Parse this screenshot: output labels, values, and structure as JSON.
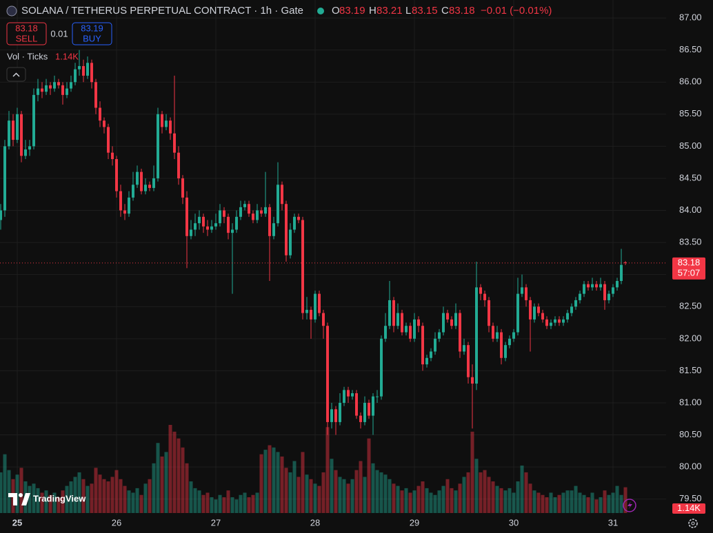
{
  "header": {
    "title": "SOLANA / TETHERUS PERPETUAL CONTRACT · 1h · Gate",
    "ohlc_labels": [
      "O",
      "H",
      "L",
      "C"
    ],
    "change": "−0.01 (−0.01%)"
  },
  "trade": {
    "sell_price": 83.18,
    "sell": "SELL",
    "spread": 0.01,
    "buy_price": 83.19,
    "buy": "BUY"
  },
  "indicator": {
    "name": "Vol · Ticks"
  },
  "branding": "TradingView",
  "chart_data": {
    "type": "candlestick",
    "categories": [
      null,
      null,
      null,
      null,
      "25",
      null,
      null,
      null,
      null,
      null,
      null,
      null,
      null,
      null,
      null,
      null,
      null,
      null,
      null,
      null,
      null,
      null,
      null,
      null,
      null,
      null,
      null,
      null,
      "26",
      null,
      null,
      null,
      null,
      null,
      null,
      null,
      null,
      null,
      null,
      null,
      null,
      null,
      null,
      null,
      null,
      null,
      null,
      null,
      null,
      null,
      null,
      null,
      "27",
      null,
      null,
      null,
      null,
      null,
      null,
      null,
      null,
      null,
      null,
      null,
      null,
      null,
      null,
      null,
      null,
      null,
      null,
      null,
      null,
      null,
      null,
      null,
      "28",
      null,
      null,
      null,
      null,
      null,
      null,
      null,
      null,
      null,
      null,
      null,
      null,
      null,
      null,
      null,
      null,
      null,
      null,
      null,
      null,
      null,
      null,
      null,
      "29",
      null,
      null,
      null,
      null,
      null,
      null,
      null,
      null,
      null,
      null,
      null,
      null,
      null,
      null,
      null,
      null,
      null,
      null,
      null,
      null,
      null,
      null,
      null,
      "30",
      null,
      null,
      null,
      null,
      null,
      null,
      null,
      null,
      null,
      null,
      null,
      null,
      null,
      null,
      null,
      null,
      null,
      null,
      null,
      null,
      null,
      null,
      null,
      "31",
      null,
      null,
      null
    ],
    "open": [
      83.85,
      84.0,
      85.0,
      85.4,
      85.1,
      85.5,
      84.85,
      84.95,
      85.0,
      85.8,
      85.9,
      85.85,
      85.95,
      85.9,
      86.0,
      85.95,
      85.8,
      85.9,
      86.0,
      86.2,
      86.25,
      86.1,
      86.3,
      86.0,
      85.6,
      85.4,
      85.3,
      84.9,
      84.8,
      84.3,
      84.0,
      83.95,
      84.2,
      84.4,
      84.6,
      84.3,
      84.4,
      84.35,
      84.5,
      85.5,
      85.3,
      85.4,
      85.2,
      84.9,
      84.5,
      84.2,
      83.6,
      83.7,
      83.8,
      83.9,
      83.75,
      83.7,
      83.75,
      83.8,
      84.0,
      83.9,
      83.65,
      83.7,
      83.9,
      84.05,
      84.1,
      83.95,
      83.85,
      84.0,
      83.95,
      84.05,
      83.6,
      83.8,
      84.4,
      84.1,
      83.3,
      83.7,
      83.9,
      83.85,
      82.4,
      82.45,
      82.3,
      82.7,
      82.4,
      82.2,
      80.7,
      80.9,
      80.7,
      81.0,
      81.2,
      81.1,
      81.15,
      80.8,
      80.7,
      81.0,
      80.8,
      81.1,
      81.1,
      82.0,
      82.2,
      82.6,
      82.2,
      82.4,
      82.1,
      82.2,
      82.0,
      82.3,
      82.2,
      81.6,
      81.7,
      81.8,
      82.0,
      82.1,
      82.4,
      82.3,
      82.2,
      82.4,
      81.8,
      81.9,
      81.4,
      81.3,
      82.8,
      82.7,
      82.6,
      82.2,
      82.0,
      82.1,
      81.7,
      81.9,
      82.0,
      82.1,
      82.7,
      82.8,
      82.6,
      82.3,
      82.5,
      82.4,
      82.3,
      82.2,
      82.25,
      82.3,
      82.25,
      82.3,
      82.4,
      82.5,
      82.6,
      82.7,
      82.85,
      82.8,
      82.85,
      82.8,
      82.85,
      82.6,
      82.7,
      82.8,
      82.9,
      83.19
    ],
    "high": [
      84.1,
      85.1,
      85.55,
      85.5,
      85.6,
      85.55,
      85.1,
      85.1,
      85.9,
      86.05,
      86.0,
      86.05,
      86.0,
      86.1,
      86.05,
      86.0,
      86.0,
      86.1,
      86.3,
      86.5,
      86.35,
      86.4,
      86.35,
      86.05,
      85.7,
      85.45,
      85.35,
      85.0,
      84.85,
      84.4,
      84.1,
      84.3,
      84.6,
      84.7,
      84.65,
      84.5,
      84.45,
      84.7,
      85.6,
      85.55,
      85.5,
      85.45,
      86.1,
      85.0,
      84.55,
      84.3,
      83.85,
      83.95,
      84.0,
      83.95,
      83.85,
      83.85,
      83.95,
      84.1,
      84.05,
      83.95,
      83.8,
      84.0,
      84.15,
      84.15,
      84.15,
      84.0,
      84.1,
      84.05,
      84.6,
      84.1,
      83.9,
      84.75,
      84.45,
      84.15,
      83.8,
      83.95,
      83.95,
      83.9,
      82.65,
      82.5,
      82.75,
      82.75,
      82.45,
      82.25,
      81.0,
      80.95,
      81.15,
      81.25,
      81.25,
      81.2,
      81.2,
      80.85,
      81.1,
      81.05,
      81.15,
      81.2,
      82.05,
      82.4,
      82.9,
      82.65,
      82.55,
      82.45,
      82.25,
      82.25,
      82.4,
      82.35,
      82.25,
      81.75,
      81.85,
      82.1,
      82.15,
      82.5,
      82.45,
      82.35,
      82.55,
      82.45,
      82.0,
      81.95,
      81.6,
      83.2,
      82.85,
      82.75,
      82.65,
      82.25,
      82.2,
      82.15,
      81.95,
      82.05,
      82.15,
      82.95,
      83.0,
      82.85,
      82.65,
      82.55,
      82.55,
      82.45,
      82.35,
      82.3,
      82.35,
      82.35,
      82.35,
      82.45,
      82.55,
      82.65,
      82.75,
      82.9,
      82.9,
      82.95,
      82.9,
      82.95,
      82.9,
      82.75,
      82.85,
      82.95,
      83.4,
      83.21
    ],
    "low": [
      83.7,
      83.9,
      84.95,
      85.0,
      85.05,
      84.75,
      84.8,
      84.85,
      84.95,
      85.7,
      85.75,
      85.8,
      85.8,
      85.85,
      85.9,
      85.65,
      85.75,
      85.85,
      85.95,
      86.1,
      86.0,
      86.05,
      85.9,
      85.5,
      85.3,
      85.2,
      84.8,
      84.7,
      84.2,
      83.9,
      83.85,
      83.9,
      84.15,
      84.35,
      84.25,
      84.25,
      84.3,
      84.3,
      84.45,
      85.2,
      85.25,
      85.1,
      84.8,
      84.4,
      84.1,
      83.1,
      83.55,
      83.6,
      83.7,
      83.65,
      83.6,
      83.65,
      83.7,
      83.75,
      83.8,
      83.55,
      82.7,
      83.65,
      83.85,
      84.0,
      83.9,
      83.8,
      83.8,
      83.9,
      83.9,
      82.9,
      83.55,
      83.75,
      84.0,
      83.2,
      83.25,
      83.65,
      83.8,
      82.3,
      82.3,
      82.0,
      82.25,
      82.35,
      82.0,
      80.5,
      80.6,
      80.5,
      80.65,
      80.95,
      81.0,
      81.05,
      80.75,
      80.6,
      80.65,
      80.75,
      80.5,
      81.0,
      81.05,
      81.95,
      82.15,
      82.1,
      82.15,
      82.05,
      82.05,
      81.95,
      81.95,
      82.1,
      81.5,
      81.55,
      81.65,
      81.75,
      81.95,
      82.05,
      82.25,
      82.15,
      82.15,
      81.7,
      81.75,
      81.3,
      80.6,
      81.2,
      82.6,
      82.5,
      82.1,
      81.95,
      81.95,
      81.6,
      81.65,
      81.85,
      81.95,
      82.05,
      82.65,
      82.5,
      81.8,
      82.25,
      82.35,
      82.25,
      82.15,
      82.15,
      82.2,
      82.2,
      82.2,
      82.25,
      82.35,
      82.45,
      82.55,
      82.65,
      82.75,
      82.75,
      82.75,
      82.75,
      82.45,
      82.55,
      82.65,
      82.75,
      82.85,
      83.15
    ],
    "close": [
      84.0,
      85.0,
      85.4,
      85.1,
      85.5,
      84.85,
      84.95,
      85.0,
      85.8,
      85.9,
      85.85,
      85.95,
      85.9,
      86.0,
      85.95,
      85.8,
      85.9,
      86.0,
      86.2,
      86.25,
      86.1,
      86.3,
      86.0,
      85.6,
      85.4,
      85.3,
      84.9,
      84.8,
      84.3,
      84.0,
      83.95,
      84.2,
      84.4,
      84.6,
      84.3,
      84.4,
      84.35,
      84.5,
      85.5,
      85.3,
      85.4,
      85.2,
      84.9,
      84.5,
      84.2,
      83.6,
      83.7,
      83.8,
      83.9,
      83.75,
      83.7,
      83.75,
      83.8,
      84.0,
      83.9,
      83.65,
      83.7,
      83.9,
      84.05,
      84.1,
      83.95,
      83.85,
      84.0,
      83.95,
      84.05,
      83.6,
      83.8,
      84.4,
      84.1,
      83.3,
      83.7,
      83.9,
      83.85,
      82.4,
      82.45,
      82.3,
      82.7,
      82.4,
      82.2,
      80.7,
      80.9,
      80.7,
      81.0,
      81.2,
      81.1,
      81.15,
      80.8,
      80.7,
      81.0,
      80.8,
      81.1,
      81.1,
      82.0,
      82.2,
      82.6,
      82.2,
      82.4,
      82.1,
      82.2,
      82.0,
      82.3,
      82.2,
      81.6,
      81.7,
      81.8,
      82.0,
      82.1,
      82.4,
      82.3,
      82.2,
      82.4,
      81.8,
      81.9,
      81.4,
      81.3,
      82.8,
      82.7,
      82.6,
      82.2,
      82.0,
      82.1,
      81.7,
      81.9,
      82.0,
      82.1,
      82.7,
      82.8,
      82.6,
      82.3,
      82.5,
      82.4,
      82.3,
      82.2,
      82.25,
      82.3,
      82.25,
      82.3,
      82.4,
      82.5,
      82.6,
      82.7,
      82.85,
      82.8,
      82.85,
      82.8,
      82.85,
      82.6,
      82.7,
      82.8,
      82.9,
      83.15,
      83.18
    ],
    "volume": [
      1800,
      2600,
      1900,
      1500,
      1700,
      2000,
      1400,
      1200,
      1300,
      1100,
      900,
      1000,
      800,
      900,
      700,
      1000,
      1200,
      1400,
      1600,
      1800,
      1500,
      1200,
      1300,
      2000,
      1700,
      1500,
      1400,
      1600,
      1900,
      1500,
      1200,
      1000,
      900,
      1100,
      800,
      1300,
      1500,
      2200,
      3100,
      2500,
      2700,
      3900,
      3600,
      3300,
      2900,
      2200,
      1400,
      1100,
      1000,
      800,
      900,
      700,
      600,
      800,
      700,
      1000,
      700,
      600,
      800,
      900,
      700,
      800,
      900,
      2600,
      2800,
      3000,
      2900,
      2700,
      2500,
      2000,
      1800,
      2300,
      1600,
      2700,
      1700,
      1500,
      1300,
      1200,
      1800,
      3800,
      2400,
      1900,
      1600,
      1500,
      1300,
      1500,
      1900,
      2300,
      1600,
      3300,
      2200,
      1900,
      1800,
      1700,
      1500,
      1300,
      1200,
      1000,
      1100,
      900,
      1000,
      1200,
      1400,
      1100,
      900,
      800,
      1000,
      1200,
      1500,
      1100,
      1000,
      1300,
      1600,
      1800,
      3600,
      2400,
      1800,
      1900,
      1600,
      1400,
      1200,
      1100,
      1000,
      1100,
      900,
      1400,
      2100,
      1800,
      1300,
      1000,
      900,
      800,
      700,
      900,
      700,
      800,
      900,
      1000,
      1000,
      1200,
      900,
      800,
      700,
      900,
      600,
      700,
      1000,
      800,
      900,
      1200,
      800,
      1140
    ],
    "volume_label": "1.14K",
    "countdown": "57:07",
    "ylim": [
      79.25,
      87.28
    ],
    "yticks": [
      {
        "value": 79.5,
        "label": "79.50"
      },
      {
        "value": 80,
        "label": "80.00"
      },
      {
        "value": 80.5,
        "label": "80.50"
      },
      {
        "value": 81,
        "label": "81.00"
      },
      {
        "value": 81.5,
        "label": "81.50"
      },
      {
        "value": 82,
        "label": "82.00"
      },
      {
        "value": 82.5,
        "label": "82.50"
      },
      {
        "value": 83,
        "label": "83.00"
      },
      {
        "value": 83.5,
        "label": "83.50"
      },
      {
        "value": 84,
        "label": "84.00"
      },
      {
        "value": 84.5,
        "label": "84.50"
      },
      {
        "value": 85,
        "label": "85.00"
      },
      {
        "value": 85.5,
        "label": "85.50"
      },
      {
        "value": 86,
        "label": "86.00"
      },
      {
        "value": 86.5,
        "label": "86.50"
      },
      {
        "value": 87,
        "label": "87.00"
      }
    ],
    "up_color": "#22ab94",
    "down_color": "#f23645",
    "grid": true
  }
}
